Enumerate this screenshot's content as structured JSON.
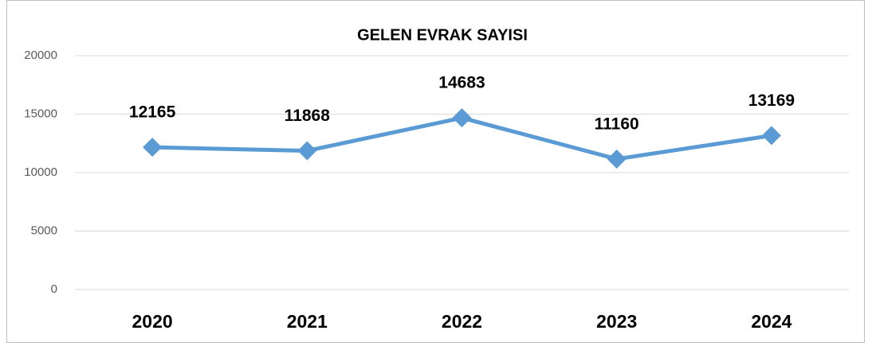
{
  "chart_data": {
    "type": "line",
    "title": "GELEN EVRAK SAYISI",
    "categories": [
      "2020",
      "2021",
      "2022",
      "2023",
      "2024"
    ],
    "series": [
      {
        "name": "GELEN EVRAK SAYISI",
        "color": "#5b9bd5",
        "values": [
          12165,
          11868,
          14683,
          11160,
          13169
        ]
      }
    ],
    "ylim": [
      0,
      20000
    ],
    "yticks": [
      0,
      5000,
      10000,
      15000,
      20000
    ],
    "grid": true,
    "legend": false
  }
}
